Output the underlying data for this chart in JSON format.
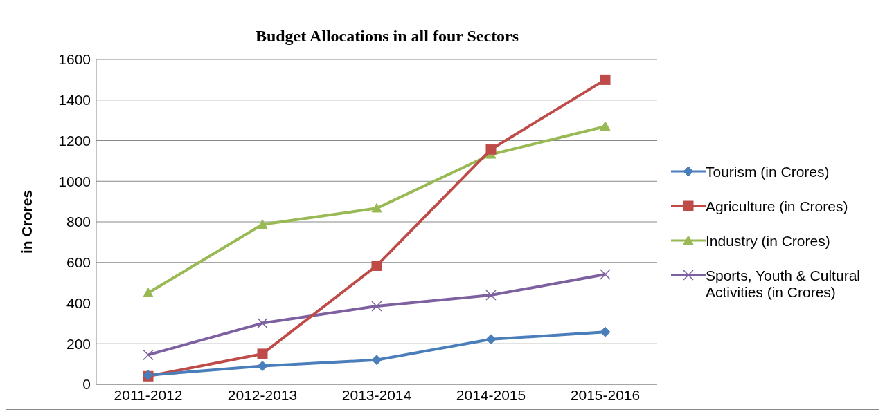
{
  "chart_data": {
    "type": "line",
    "title": "Budget Allocations in all four Sectors",
    "ylabel": "in Crores",
    "categories": [
      "2011-2012",
      "2012-2013",
      "2013-2014",
      "2014-2015",
      "2015-2016"
    ],
    "series": [
      {
        "name": "Tourism (in Crores)",
        "color": "#4a7ebb",
        "marker": "diamond",
        "values": [
          45,
          90,
          120,
          222,
          258
        ]
      },
      {
        "name": "Agriculture (in Crores)",
        "color": "#be4b48",
        "marker": "square",
        "values": [
          40,
          150,
          584,
          1157,
          1500
        ]
      },
      {
        "name": "Industry (in Crores)",
        "color": "#98b954",
        "marker": "triangle",
        "values": [
          450,
          787,
          867,
          1132,
          1270
        ]
      },
      {
        "name": "Sports, Youth & Cultural Activities (in Crores)",
        "color": "#7d60a0",
        "marker": "cross",
        "values": [
          145,
          301,
          385,
          439,
          541
        ]
      }
    ],
    "ylim": [
      0,
      1600
    ],
    "yticks": [
      0,
      200,
      400,
      600,
      800,
      1000,
      1200,
      1400,
      1600
    ],
    "grid": "y",
    "legend": "right",
    "line_style": "solid"
  }
}
